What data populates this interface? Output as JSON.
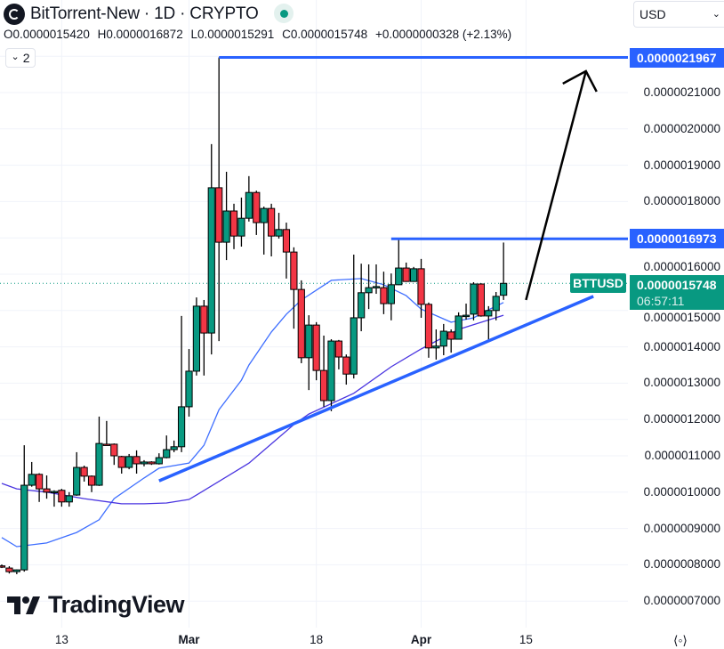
{
  "header": {
    "title": "BitTorrent-New · 1D · CRYPTO",
    "market_status": "open",
    "ohlc": {
      "open": "O0.0000015420",
      "high": "H0.0000016872",
      "low": "L0.0000015291",
      "close": "C0.0000015748",
      "change": "+0.0000000328 (+2.13%)"
    },
    "currency": "USD",
    "indicators_collapse_label": "2"
  },
  "branding": {
    "name": "TradingView"
  },
  "chart_data": {
    "type": "candlestick",
    "symbol_label": "BTTUSD",
    "last_price_label": "0.0000015748",
    "countdown": "06:57:11",
    "colors": {
      "up": "#089981",
      "down": "#F23645",
      "drawing": "#2962FF",
      "ma_fast": "#3f6fff",
      "ma_slow": "#4a35e0"
    },
    "y_ticks": [
      "0.0000021000",
      "0.0000020000",
      "0.0000019000",
      "0.0000018000",
      "0.0000016000",
      "0.0000015000",
      "0.0000014000",
      "0.0000013000",
      "0.0000012000",
      "0.0000011000",
      "0.0000010000",
      "0.0000009000",
      "0.0000008000",
      "0.0000007000"
    ],
    "y_tick_values": [
      2.1e-06,
      2e-06,
      1.9e-06,
      1.8e-06,
      1.6e-06,
      1.5e-06,
      1.4e-06,
      1.3e-06,
      1.2e-06,
      1.1e-06,
      1e-06,
      9e-07,
      8e-07,
      7e-07
    ],
    "x_ticks": [
      {
        "label": "13",
        "date": "Feb 13",
        "bold": false
      },
      {
        "label": "Mar",
        "date": "Mar 1",
        "bold": true
      },
      {
        "label": "18",
        "date": "Mar 18",
        "bold": false
      },
      {
        "label": "Apr",
        "date": "Apr 1",
        "bold": true
      },
      {
        "label": "15",
        "date": "Apr 15",
        "bold": false
      }
    ],
    "grid": true,
    "columns": [
      "date",
      "open",
      "high",
      "low",
      "close"
    ],
    "candles": [
      [
        "Feb 5",
        7.97e-07,
        8.01e-07,
        7.91e-07,
        7.96e-07
      ],
      [
        "Feb 6",
        7.91e-07,
        7.96e-07,
        7.76e-07,
        7.81e-07
      ],
      [
        "Feb 7",
        7.81e-07,
        7.87e-07,
        7.74e-07,
        7.86e-07
      ],
      [
        "Feb 8",
        7.86e-07,
        1.129e-06,
        7.81e-07,
        1.019e-06
      ],
      [
        "Feb 9",
        1.019e-06,
        1.083e-06,
        1.015e-06,
        1.049e-06
      ],
      [
        "Feb 10",
        1.049e-06,
        1.052e-06,
        9.73e-07,
        1.009e-06
      ],
      [
        "Feb 11",
        1.009e-06,
        1.046e-06,
        9.82e-07,
        1e-06
      ],
      [
        "Feb 12",
        1e-06,
        1.005e-06,
        9.6e-07,
        1.002e-06
      ],
      [
        "Feb 13",
        1.005e-06,
        1.009e-06,
        9.6e-07,
        9.73e-07
      ],
      [
        "Feb 14",
        9.73e-07,
        1e-06,
        9.6e-07,
        9.9e-07
      ],
      [
        "Feb 15",
        9.92e-07,
        1.11e-06,
        9.9e-07,
        1.068e-06
      ],
      [
        "Feb 16",
        1.068e-06,
        1.073e-06,
        1.029e-06,
        1.044e-06
      ],
      [
        "Feb 17",
        1.044e-06,
        1.046e-06,
        1e-06,
        1.019e-06
      ],
      [
        "Feb 18",
        1.019e-06,
        1.208e-06,
        1.017e-06,
        1.134e-06
      ],
      [
        "Feb 19",
        1.132e-06,
        1.196e-06,
        1.129e-06,
        1.13e-06
      ],
      [
        "Feb 20",
        1.132e-06,
        1.134e-06,
        1.075e-06,
        1.1e-06
      ],
      [
        "Feb 21",
        1.098e-06,
        1.1e-06,
        1.051e-06,
        1.068e-06
      ],
      [
        "Feb 22",
        1.068e-06,
        1.105e-06,
        1.063e-06,
        1.098e-06
      ],
      [
        "Feb 23",
        1.098e-06,
        1.115e-06,
        1.051e-06,
        1.078e-06
      ],
      [
        "Feb 24",
        1.078e-06,
        1.088e-06,
        1.071e-06,
        1.083e-06
      ],
      [
        "Feb 25",
        1.083e-06,
        1.085e-06,
        1.075e-06,
        1.078e-06
      ],
      [
        "Feb 26",
        1.078e-06,
        1.107e-06,
        1.076e-06,
        1.095e-06
      ],
      [
        "Feb 27",
        1.095e-06,
        1.156e-06,
        1.093e-06,
        1.117e-06
      ],
      [
        "Feb 28",
        1.117e-06,
        1.142e-06,
        1.11e-06,
        1.125e-06
      ],
      [
        "Feb 29",
        1.125e-06,
        1.485e-06,
        1.11e-06,
        1.235e-06
      ],
      [
        "Mar 1",
        1.235e-06,
        1.394e-06,
        1.208e-06,
        1.333e-06
      ],
      [
        "Mar 2",
        1.333e-06,
        1.536e-06,
        1.321e-06,
        1.512e-06
      ],
      [
        "Mar 3",
        1.512e-06,
        1.529e-06,
        1.321e-06,
        1.438e-06
      ],
      [
        "Mar 4",
        1.438e-06,
        1.958e-06,
        1.379e-06,
        1.838e-06
      ],
      [
        "Mar 5",
        1.838e-06,
        2.1967e-06,
        1.416e-06,
        1.688e-06
      ],
      [
        "Mar 6",
        1.688e-06,
        1.882e-06,
        1.639e-06,
        1.774e-06
      ],
      [
        "Mar 7",
        1.774e-06,
        1.794e-06,
        1.669e-06,
        1.705e-06
      ],
      [
        "Mar 8",
        1.705e-06,
        1.811e-06,
        1.676e-06,
        1.754e-06
      ],
      [
        "Mar 9",
        1.754e-06,
        1.87e-06,
        1.745e-06,
        1.825e-06
      ],
      [
        "Mar 10",
        1.825e-06,
        1.83e-06,
        1.708e-06,
        1.742e-06
      ],
      [
        "Mar 11",
        1.742e-06,
        1.786e-06,
        1.654e-06,
        1.781e-06
      ],
      [
        "Mar 12",
        1.781e-06,
        1.794e-06,
        1.649e-06,
        1.705e-06
      ],
      [
        "Mar 13",
        1.705e-06,
        1.769e-06,
        1.698e-06,
        1.723e-06
      ],
      [
        "Mar 14",
        1.723e-06,
        1.742e-06,
        1.588e-06,
        1.661e-06
      ],
      [
        "Mar 15",
        1.661e-06,
        1.674e-06,
        1.45e-06,
        1.558e-06
      ],
      [
        "Mar 16",
        1.558e-06,
        1.583e-06,
        1.355e-06,
        1.37e-06
      ],
      [
        "Mar 17",
        1.37e-06,
        1.487e-06,
        1.281e-06,
        1.46e-06
      ],
      [
        "Mar 18",
        1.46e-06,
        1.468e-06,
        1.308e-06,
        1.335e-06
      ],
      [
        "Mar 19",
        1.335e-06,
        1.431e-06,
        1.235e-06,
        1.252e-06
      ],
      [
        "Mar 20",
        1.252e-06,
        1.421e-06,
        1.223e-06,
        1.416e-06
      ],
      [
        "Mar 21",
        1.416e-06,
        1.419e-06,
        1.338e-06,
        1.372e-06
      ],
      [
        "Mar 22",
        1.372e-06,
        1.379e-06,
        1.296e-06,
        1.325e-06
      ],
      [
        "Mar 23",
        1.325e-06,
        1.654e-06,
        1.313e-06,
        1.48e-06
      ],
      [
        "Mar 24",
        1.48e-06,
        1.629e-06,
        1.443e-06,
        1.549e-06
      ],
      [
        "Mar 25",
        1.549e-06,
        1.627e-06,
        1.504e-06,
        1.563e-06
      ],
      [
        "Mar 26",
        1.563e-06,
        1.627e-06,
        1.546e-06,
        1.566e-06
      ],
      [
        "Mar 27",
        1.563e-06,
        1.607e-06,
        1.49e-06,
        1.519e-06
      ],
      [
        "Mar 28",
        1.519e-06,
        1.602e-06,
        1.473e-06,
        1.571e-06
      ],
      [
        "Mar 29",
        1.571e-06,
        1.7e-06,
        1.57e-06,
        1.617e-06
      ],
      [
        "Mar 30",
        1.617e-06,
        1.632e-06,
        1.579e-06,
        1.58e-06
      ],
      [
        "Mar 31",
        1.58e-06,
        1.62e-06,
        1.579e-06,
        1.615e-06
      ],
      [
        "Apr 1",
        1.615e-06,
        1.642e-06,
        1.48e-06,
        1.517e-06
      ],
      [
        "Apr 2",
        1.517e-06,
        1.522e-06,
        1.37e-06,
        1.397e-06
      ],
      [
        "Apr 3",
        1.397e-06,
        1.448e-06,
        1.365e-06,
        1.402e-06
      ],
      [
        "Apr 4",
        1.402e-06,
        1.463e-06,
        1.377e-06,
        1.443e-06
      ],
      [
        "Apr 5",
        1.441e-06,
        1.448e-06,
        1.384e-06,
        1.421e-06
      ],
      [
        "Apr 6",
        1.421e-06,
        1.495e-06,
        1.42e-06,
        1.485e-06
      ],
      [
        "Apr 7",
        1.485e-06,
        1.519e-06,
        1.475e-06,
        1.487e-06
      ],
      [
        "Apr 8",
        1.49e-06,
        1.578e-06,
        1.473e-06,
        1.573e-06
      ],
      [
        "Apr 9",
        1.573e-06,
        1.575e-06,
        1.483e-06,
        1.485e-06
      ],
      [
        "Apr 10",
        1.485e-06,
        1.512e-06,
        1.416e-06,
        1.5e-06
      ],
      [
        "Apr 11",
        1.5e-06,
        1.551e-06,
        1.473e-06,
        1.539e-06
      ],
      [
        "Apr 12",
        1.542e-06,
        1.6872e-06,
        1.5291e-06,
        1.5748e-06
      ]
    ],
    "moving_averages": [
      {
        "role": "fast",
        "points": [
          [
            "Feb 5",
            8.75e-07
          ],
          [
            "Feb 7",
            8.5e-07
          ],
          [
            "Feb 11",
            8.6e-07
          ],
          [
            "Feb 15",
            8.89e-07
          ],
          [
            "Feb 18",
            9.24e-07
          ],
          [
            "Feb 20",
            9.82e-07
          ],
          [
            "Feb 24",
            1.039e-06
          ],
          [
            "Feb 26",
            1.066e-06
          ],
          [
            "Mar 1",
            1.08e-06
          ],
          [
            "Mar 3",
            1.129e-06
          ],
          [
            "Mar 5",
            1.227e-06
          ],
          [
            "Mar 8",
            1.308e-06
          ],
          [
            "Mar 9",
            1.35e-06
          ],
          [
            "Mar 12",
            1.441e-06
          ],
          [
            "Mar 14",
            1.49e-06
          ],
          [
            "Mar 16",
            1.529e-06
          ],
          [
            "Mar 20",
            1.583e-06
          ],
          [
            "Mar 24",
            1.588e-06
          ],
          [
            "Mar 27",
            1.571e-06
          ],
          [
            "Mar 30",
            1.541e-06
          ],
          [
            "Apr 1",
            1.504e-06
          ],
          [
            "Apr 5",
            1.468e-06
          ],
          [
            "Apr 8",
            1.48e-06
          ],
          [
            "Apr 10",
            1.502e-06
          ],
          [
            "Apr 12",
            1.522e-06
          ]
        ]
      },
      {
        "role": "slow",
        "points": [
          [
            "Feb 5",
            1.024e-06
          ],
          [
            "Feb 7",
            1.009e-06
          ],
          [
            "Feb 11",
            1e-06
          ],
          [
            "Feb 16",
            9.82e-07
          ],
          [
            "Feb 21",
            9.68e-07
          ],
          [
            "Feb 24",
            9.68e-07
          ],
          [
            "Feb 27",
            9.7e-07
          ],
          [
            "Mar 1",
            9.8e-07
          ],
          [
            "Mar 2",
            9.92e-07
          ],
          [
            "Mar 9",
            1.08e-06
          ],
          [
            "Mar 15",
            1.186e-06
          ],
          [
            "Mar 17",
            1.215e-06
          ],
          [
            "Mar 23",
            1.272e-06
          ],
          [
            "Mar 28",
            1.345e-06
          ],
          [
            "Apr 1",
            1.394e-06
          ],
          [
            "Apr 6",
            1.448e-06
          ],
          [
            "Apr 12",
            1.487e-06
          ]
        ]
      }
    ],
    "drawings": {
      "resistance_high": {
        "from": "Mar 5",
        "price": 2.1967e-06,
        "label": "0.0000021967"
      },
      "resistance_mid": {
        "from": "Mar 28",
        "price": 1.6973e-06,
        "label": "0.0000016973"
      },
      "trendline": {
        "from": [
          "Feb 26",
          1.031e-06
        ],
        "to": [
          "Apr 24",
          1.539e-06
        ]
      },
      "arrow": {
        "from": [
          "Apr 15",
          1.529e-06
        ],
        "to": [
          "Apr 23",
          2.159e-06
        ]
      }
    }
  }
}
